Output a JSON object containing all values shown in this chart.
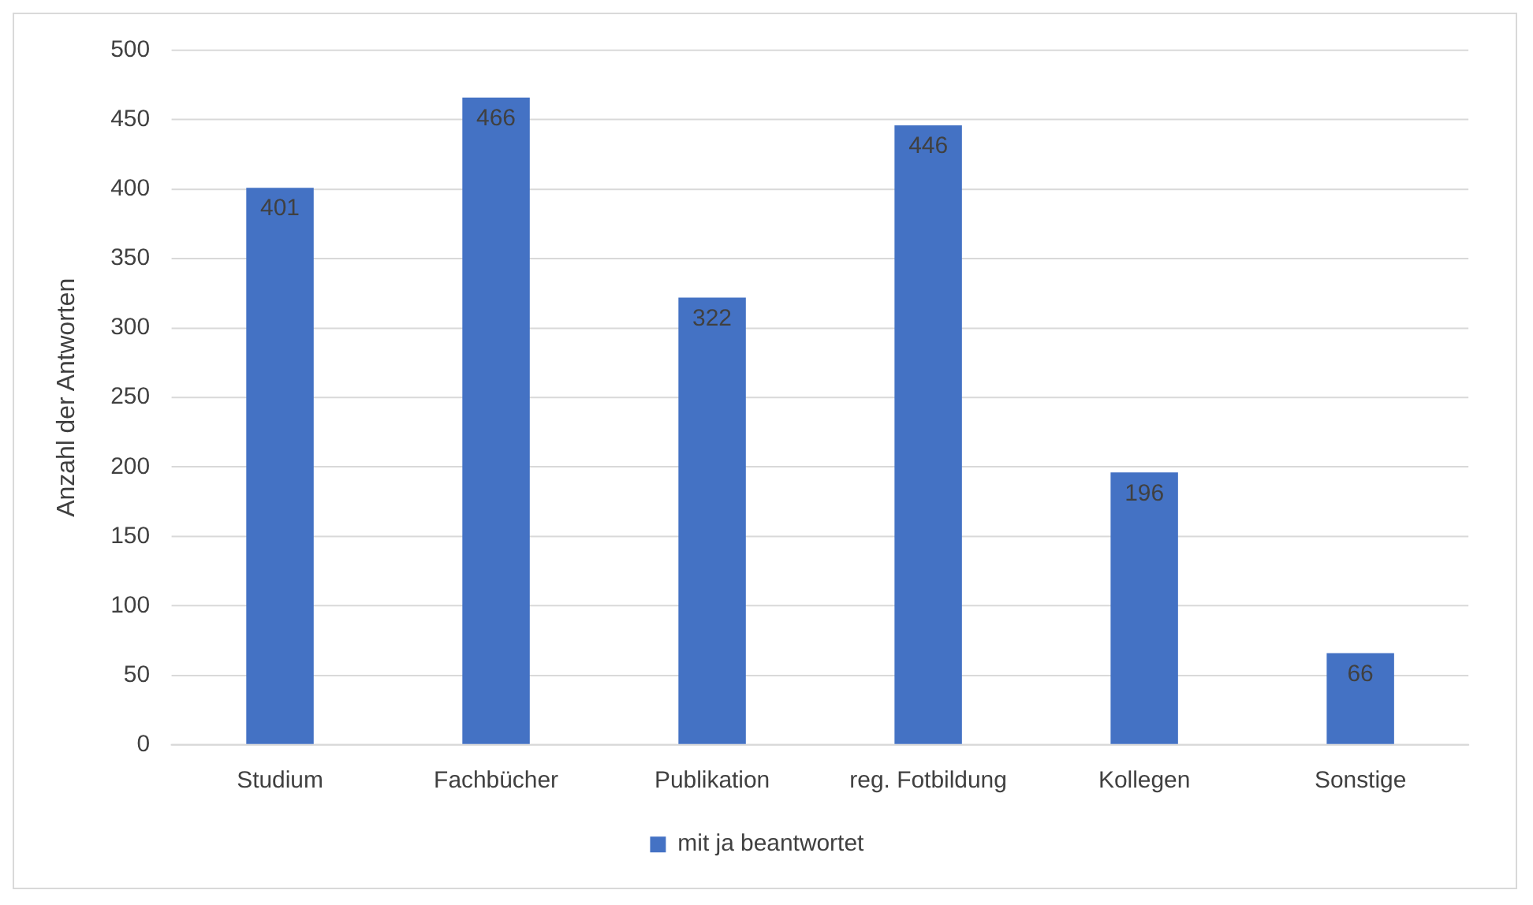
{
  "chart_data": {
    "type": "bar",
    "ylabel": "Anzahl der Antworten",
    "categories": [
      "Studium",
      "Fachbücher",
      "Publikation",
      "reg. Fotbildung",
      "Kollegen",
      "Sonstige"
    ],
    "series": [
      {
        "name": "mit ja beantwortet",
        "color": "#4472c4",
        "values": [
          401,
          466,
          322,
          446,
          196,
          66
        ]
      }
    ],
    "ylim": [
      0,
      500
    ],
    "yticks": [
      0,
      50,
      100,
      150,
      200,
      250,
      300,
      350,
      400,
      450,
      500
    ],
    "grid": "y",
    "legend": "bottom",
    "data_labels": true
  }
}
